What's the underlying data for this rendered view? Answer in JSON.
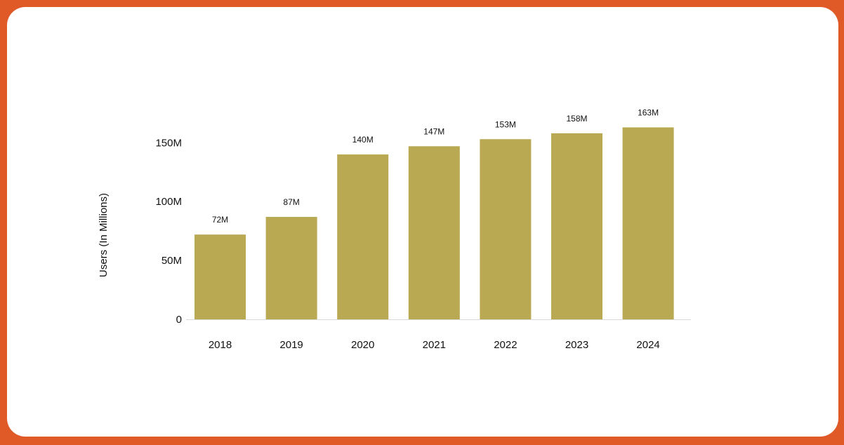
{
  "chart_data": {
    "type": "bar",
    "categories": [
      "2018",
      "2019",
      "2020",
      "2021",
      "2022",
      "2023",
      "2024"
    ],
    "values": [
      72,
      87,
      140,
      147,
      153,
      158,
      163
    ],
    "data_labels": [
      "72M",
      "87M",
      "140M",
      "147M",
      "153M",
      "158M",
      "163M"
    ],
    "title": "",
    "xlabel": "",
    "ylabel": "Users  (In Millions)",
    "yticks": [
      0,
      50,
      100,
      150
    ],
    "ytick_labels": [
      "0",
      "50M",
      "100M",
      "150M"
    ],
    "ylim": [
      0,
      163
    ],
    "grid": false,
    "legend": "none",
    "bar_color": "#b8a952",
    "axis_color": "#d9d9d9"
  },
  "frame": {
    "border_color": "#e05a27",
    "background": "#ffffff"
  }
}
